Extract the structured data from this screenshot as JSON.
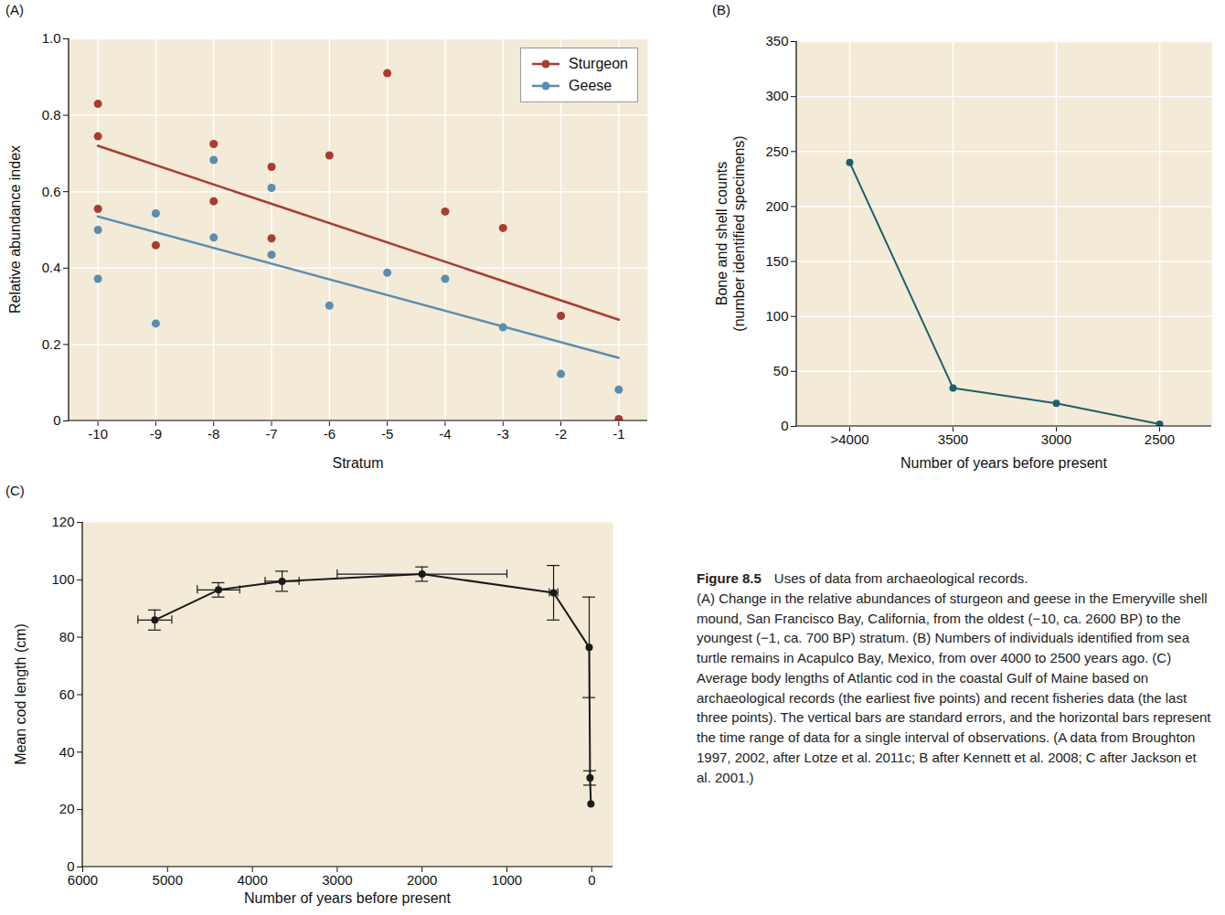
{
  "figure_label": "Figure 8.5",
  "caption_title": "Uses of data from archaeological records.",
  "caption": "(A) Change in the relative abundances of sturgeon and geese in the Emeryville shell mound, San Francisco Bay, California, from the oldest (−10, ca. 2600 BP) to the youngest (−1, ca. 700 BP) stratum. (B) Numbers of individuals identified from sea turtle remains in Acapulco Bay, Mexico, from over 4000 to 2500 years ago. (C) Average body lengths of Atlantic cod in the coastal Gulf of Maine based on archaeological records (the earliest five points) and recent fisheries data (the last three points). The vertical bars are standard errors, and the horizontal bars represent the time range of data for a single interval of observations. (A data from Broughton 1997, 2002, after Lotze et al. 2011c; B after Kennett et al. 2008; C after Jackson et al. 2001.)",
  "chart_data": [
    {
      "panel_label": "(A)",
      "type": "scatter",
      "x_label": "Stratum",
      "y_label": "Relative abundance index",
      "xlim": [
        -10.5,
        -0.5
      ],
      "xticks": [
        -10,
        -9,
        -8,
        -7,
        -6,
        -5,
        -4,
        -3,
        -2,
        -1
      ],
      "ylim": [
        0,
        1
      ],
      "yticks": [
        0,
        0.2,
        0.4,
        0.6,
        0.8,
        {
          "value": 1,
          "label": "1.0"
        }
      ],
      "grid": true,
      "legend": "top-right",
      "series": [
        {
          "name": "Sturgeon",
          "color": "#a83c32",
          "marker": "circle",
          "x": [
            -10,
            -10,
            -10,
            -9,
            -8,
            -8,
            -7,
            -7,
            -6,
            -5,
            -4,
            -3,
            -2,
            -1
          ],
          "values": [
            0.83,
            0.745,
            0.555,
            0.46,
            0.725,
            0.575,
            0.665,
            0.478,
            0.695,
            0.91,
            0.548,
            0.505,
            0.275,
            0.005
          ],
          "trend": {
            "x": [
              -10,
              -1
            ],
            "values": [
              0.72,
              0.265
            ]
          }
        },
        {
          "name": "Geese",
          "color": "#5a8db0",
          "marker": "circle",
          "x": [
            -10,
            -10,
            -9,
            -9,
            -8,
            -8,
            -7,
            -7,
            -6,
            -5,
            -4,
            -3,
            -2,
            -1
          ],
          "values": [
            0.5,
            0.372,
            0.543,
            0.255,
            0.683,
            0.48,
            0.61,
            0.435,
            0.302,
            0.388,
            0.372,
            0.245,
            0.123,
            0.082
          ],
          "trend": {
            "x": [
              -10,
              -1
            ],
            "values": [
              0.535,
              0.165
            ]
          }
        }
      ]
    },
    {
      "panel_label": "(B)",
      "type": "line",
      "x_label": "Number of years before present",
      "y_label": "Bone and shell counts\n(number identified specimens)",
      "categories": [
        ">4000",
        "3500",
        "3000",
        "2500"
      ],
      "values": [
        240,
        35,
        21,
        2
      ],
      "color": "#1e5f69",
      "marker": "circle",
      "ylim": [
        0,
        350
      ],
      "yticks": [
        0,
        50,
        100,
        150,
        200,
        250,
        300,
        350
      ],
      "grid": true
    },
    {
      "panel_label": "(C)",
      "type": "line",
      "x_label": "Number of years before present",
      "y_label": "Mean cod length (cm)",
      "x": [
        5150,
        4400,
        3650,
        2000,
        450,
        30,
        20,
        10
      ],
      "values": [
        86,
        96.5,
        99.5,
        102,
        95.5,
        76.5,
        31,
        22
      ],
      "y_error": [
        3.5,
        2.5,
        3.5,
        2.5,
        9.5,
        17.5,
        2.5,
        null
      ],
      "x_error": [
        200,
        250,
        200,
        1000,
        50,
        null,
        null,
        null
      ],
      "color": "#1a1a1a",
      "marker": "circle",
      "xlim": [
        6000,
        -250
      ],
      "xticks": [
        6000,
        5000,
        4000,
        3000,
        2000,
        1000,
        0
      ],
      "ylim": [
        0,
        120
      ],
      "yticks": [
        0,
        20,
        40,
        60,
        80,
        100,
        120
      ],
      "grid": false
    }
  ]
}
